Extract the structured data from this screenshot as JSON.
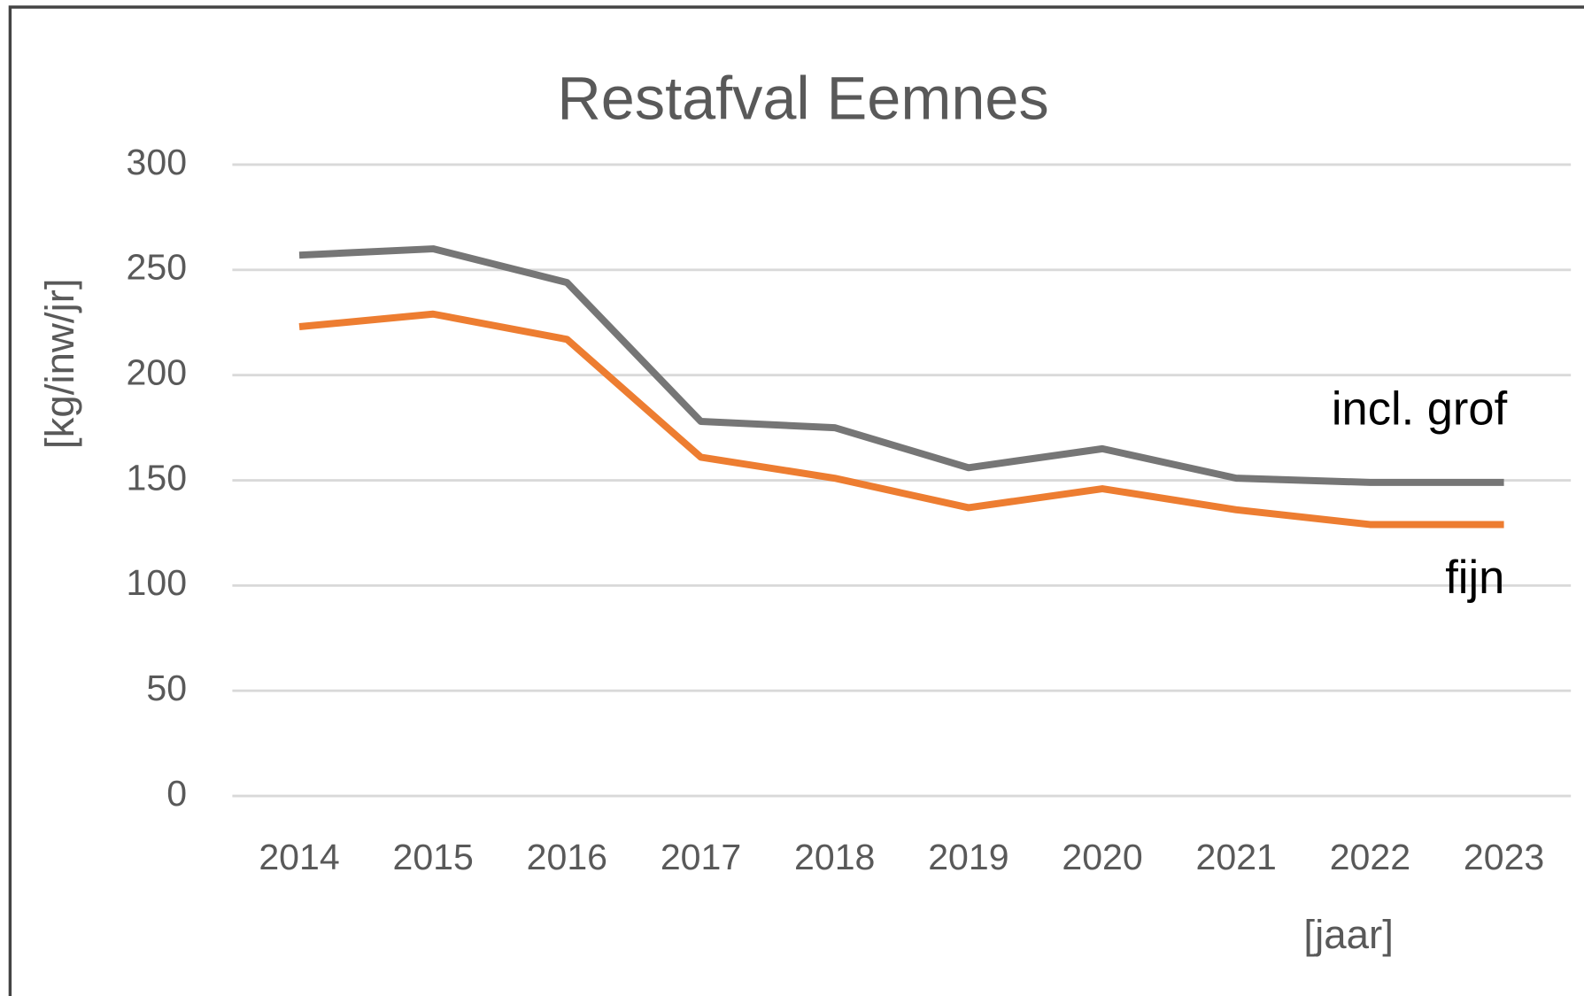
{
  "chart_data": {
    "type": "line",
    "title": "Restafval Eemnes",
    "y_label": "[kg/inw/jr]",
    "x_label": "[jaar]",
    "categories": [
      "2014",
      "2015",
      "2016",
      "2017",
      "2018",
      "2019",
      "2020",
      "2021",
      "2022",
      "2023"
    ],
    "series": [
      {
        "name": "incl. grof",
        "color": "#767676",
        "values": [
          257,
          260,
          244,
          178,
          175,
          156,
          165,
          151,
          149,
          149
        ]
      },
      {
        "name": "fijn",
        "color": "#ed7d31",
        "values": [
          223,
          229,
          217,
          161,
          151,
          137,
          146,
          136,
          129,
          129
        ]
      }
    ],
    "ylim": [
      0,
      300
    ],
    "yticks": [
      0,
      50,
      100,
      150,
      200,
      250,
      300
    ],
    "grid": true
  }
}
